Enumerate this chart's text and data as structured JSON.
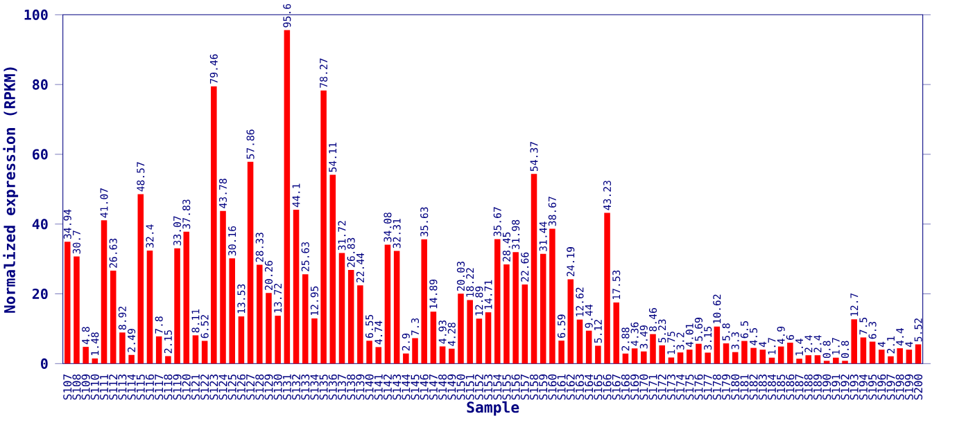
{
  "chart_data": {
    "type": "bar",
    "xlabel": "Sample",
    "ylabel": "Normalized expression (RPKM)",
    "categories": [
      "S107",
      "S108",
      "S109",
      "S110",
      "S111",
      "S112",
      "S113",
      "S114",
      "S115",
      "S116",
      "S117",
      "S118",
      "S119",
      "S120",
      "S121",
      "S122",
      "S123",
      "S124",
      "S125",
      "S126",
      "S127",
      "S128",
      "S129",
      "S130",
      "S131",
      "S132",
      "S133",
      "S134",
      "S135",
      "S136",
      "S137",
      "S138",
      "S139",
      "S140",
      "S141",
      "S142",
      "S143",
      "S144",
      "S145",
      "S146",
      "S147",
      "S148",
      "S149",
      "S150",
      "S151",
      "S152",
      "S153",
      "S154",
      "S155",
      "S156",
      "S157",
      "S158",
      "S159",
      "S160",
      "S161",
      "S162",
      "S163",
      "S164",
      "S165",
      "S166",
      "S167",
      "S168",
      "S169",
      "S170",
      "S171",
      "S172",
      "S173",
      "S174",
      "S175",
      "S176",
      "S177",
      "S178",
      "S179",
      "S180",
      "S181",
      "S182",
      "S183",
      "S184",
      "S185",
      "S186",
      "S187",
      "S188",
      "S189",
      "S190",
      "S191",
      "S192",
      "S193",
      "S194",
      "S195",
      "S196",
      "S197",
      "S198",
      "S199",
      "S200"
    ],
    "values": [
      34.94,
      30.7,
      4.8,
      1.48,
      41.07,
      26.63,
      8.92,
      2.49,
      48.57,
      32.4,
      7.8,
      2.15,
      33.07,
      37.83,
      8.11,
      6.52,
      79.46,
      43.78,
      30.16,
      13.53,
      57.86,
      28.33,
      20.26,
      13.72,
      95.6,
      44.1,
      25.63,
      12.95,
      78.27,
      54.11,
      31.72,
      26.83,
      22.44,
      6.55,
      4.74,
      34.08,
      32.31,
      2.9,
      7.3,
      35.63,
      14.89,
      4.93,
      4.28,
      20.03,
      18.22,
      12.89,
      14.71,
      35.67,
      28.45,
      31.98,
      22.66,
      54.37,
      31.44,
      38.67,
      6.59,
      24.19,
      12.62,
      9.44,
      5.12,
      43.23,
      17.53,
      2.88,
      4.36,
      3.49,
      8.46,
      5.23,
      1.75,
      3.2,
      4.01,
      5.69,
      3.15,
      10.62,
      5.8,
      3.3,
      6.5,
      4.5,
      4,
      1.7,
      4.9,
      6,
      1.4,
      2.4,
      2.4,
      0.8,
      1.7,
      0.8,
      12.7,
      7.5,
      6.3,
      4,
      2.1,
      4.4,
      4,
      5.52
    ],
    "color": "#ff0000",
    "ylim": [
      0,
      100
    ],
    "yticks": [
      0,
      20,
      40,
      60,
      80,
      100
    ],
    "data_labels": true
  }
}
